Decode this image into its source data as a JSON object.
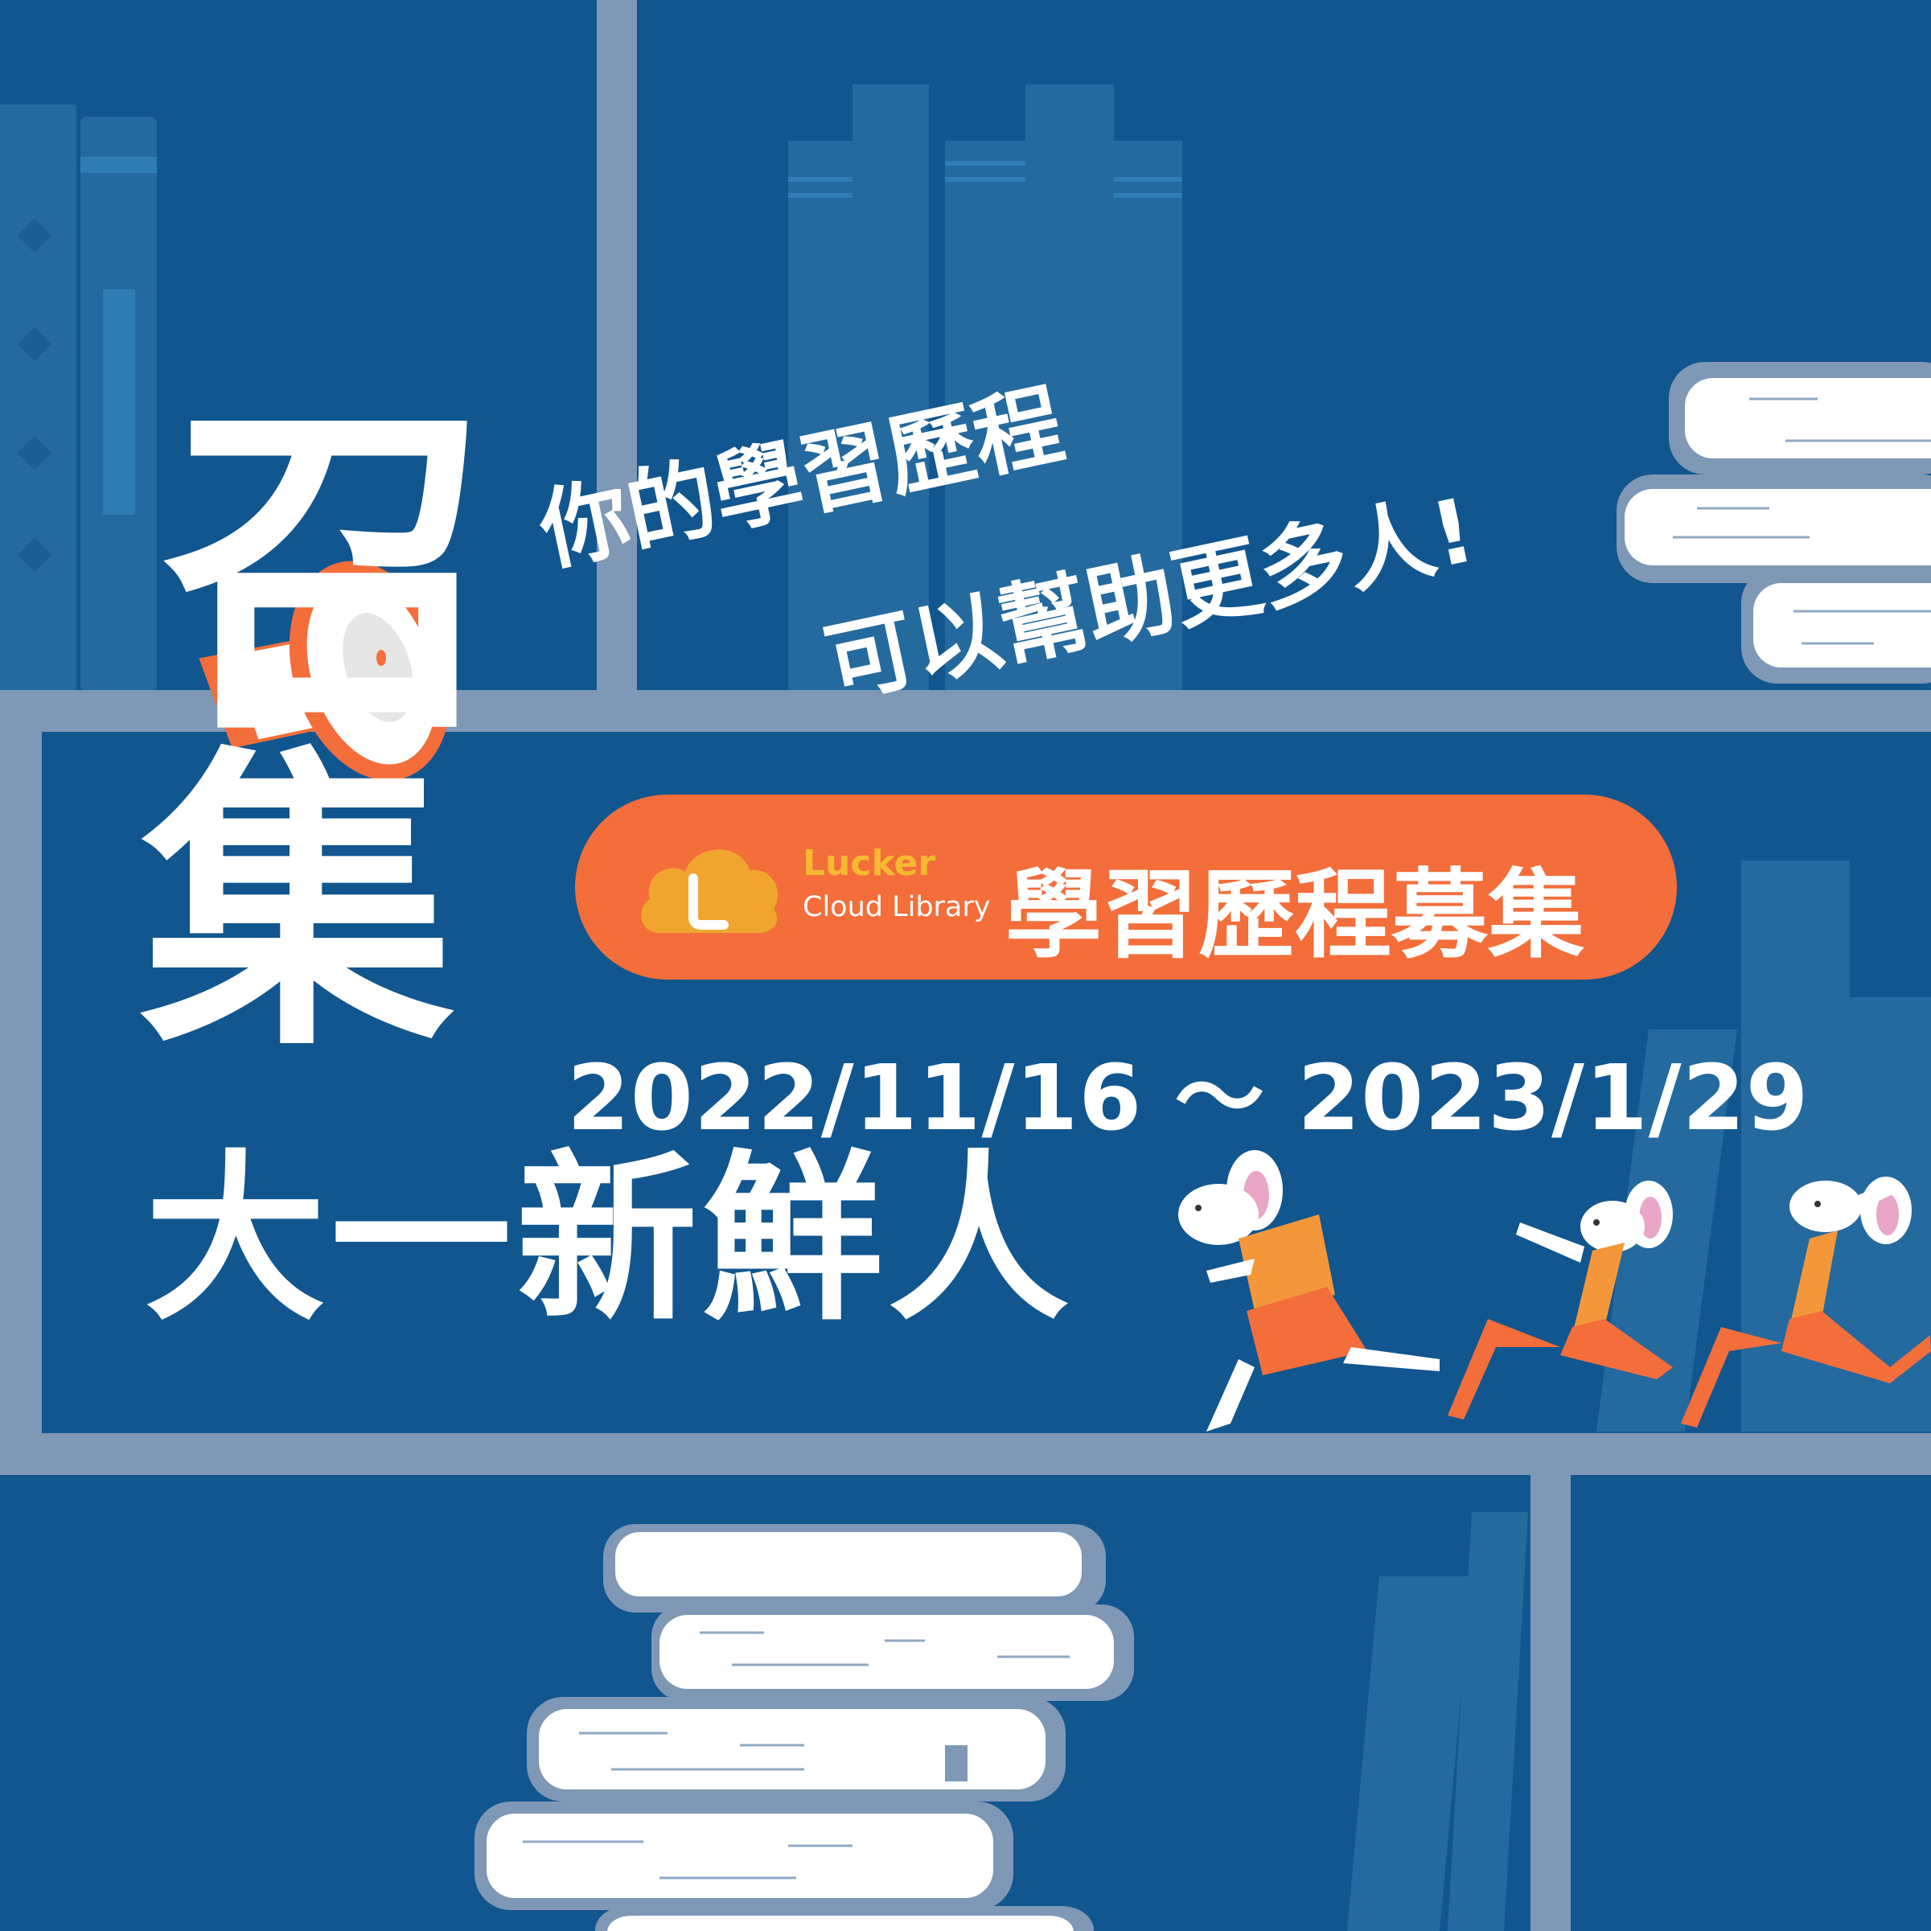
{
  "headline": {
    "line1": "召",
    "line2": "集",
    "line3": "大一新鮮人"
  },
  "tagline": {
    "line1": "你的學習歷程",
    "line2": "可以幫助更多人!"
  },
  "badge": {
    "brand_name": "Lucker",
    "brand_sub": "Cloud Library",
    "title": "學習歷程募集"
  },
  "date_range": "2022/11/16 ～ 2023/1/29",
  "icons": [
    "megaphone-icon",
    "lucker-cloud-logo-icon",
    "running-mouse-icon"
  ],
  "colors": {
    "background": "#12568f",
    "shelf": "#7e98b5",
    "accent_orange": "#f36e3a",
    "logo_yellow": "#f5b931",
    "text": "#ffffff"
  }
}
